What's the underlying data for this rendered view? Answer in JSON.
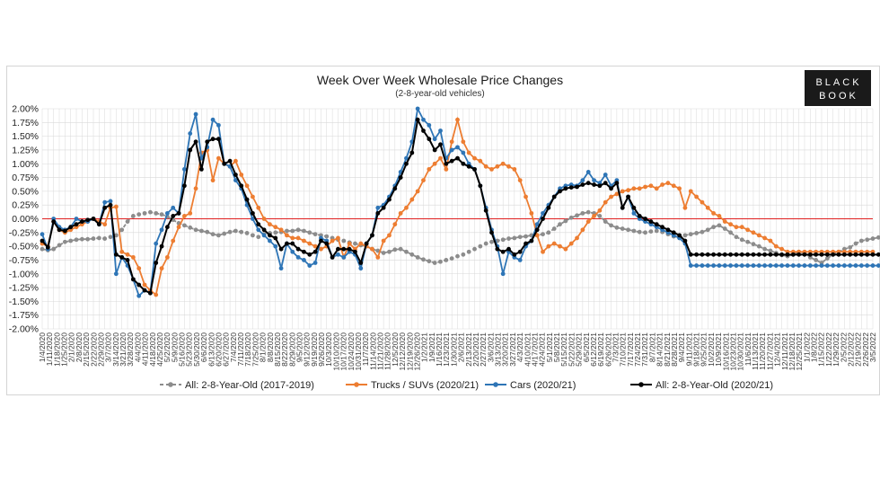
{
  "chart_data": {
    "type": "line",
    "title": "Week Over Week Wholesale Price Changes",
    "subtitle": "(2-8-year-old vehicles)",
    "ylim": [
      -2.0,
      2.0
    ],
    "yticks": [
      "2.00%",
      "1.75%",
      "1.50%",
      "1.25%",
      "1.00%",
      "0.75%",
      "0.50%",
      "0.25%",
      "0.00%",
      "-0.25%",
      "-0.50%",
      "-0.75%",
      "-1.00%",
      "-1.25%",
      "-1.50%",
      "-1.75%",
      "-2.00%"
    ],
    "x_tick_labels": [
      "1/4/2020",
      "1/11/2020",
      "1/18/2020",
      "1/25/2020",
      "2/1/2020",
      "2/8/2020",
      "2/15/2020",
      "2/22/2020",
      "2/29/2020",
      "3/7/2020",
      "3/14/2020",
      "3/21/2020",
      "3/28/2020",
      "4/4/2020",
      "4/11/2020",
      "4/18/2020",
      "4/25/2020",
      "5/2/2020",
      "5/9/2020",
      "5/16/2020",
      "5/23/2020",
      "5/30/2020",
      "6/6/2020",
      "6/13/2020",
      "6/20/2020",
      "6/27/2020",
      "7/4/2020",
      "7/11/2020",
      "7/18/2020",
      "7/25/2020",
      "8/1/2020",
      "8/8/2020",
      "8/15/2020",
      "8/22/2020",
      "8/29/2020",
      "9/5/2020",
      "9/12/2020",
      "9/19/2020",
      "9/26/2020",
      "10/3/2020",
      "10/10/2020",
      "10/17/2020",
      "10/24/2020",
      "10/31/2020",
      "11/7/2020",
      "11/14/2020",
      "11/21/2020",
      "11/28/2020",
      "12/5/2020",
      "12/12/2020",
      "12/19/2020",
      "12/26/2020",
      "1/2/2021",
      "1/9/2021",
      "1/16/2021",
      "1/23/2021",
      "1/30/2021",
      "2/6/2021",
      "2/13/2021",
      "2/20/2021",
      "2/27/2021",
      "3/6/2021",
      "3/13/2021",
      "3/20/2021",
      "3/27/2021",
      "4/3/2021",
      "4/10/2021",
      "4/17/2021",
      "4/24/2021",
      "5/1/2021",
      "5/8/2021",
      "5/15/2021",
      "5/22/2021",
      "5/29/2021",
      "6/5/2021",
      "6/12/2021",
      "6/19/2021",
      "6/26/2021",
      "7/3/2021",
      "7/10/2021",
      "7/17/2021",
      "7/24/2021",
      "7/31/2021",
      "8/7/2021",
      "8/14/2021",
      "8/21/2021",
      "8/28/2021",
      "9/4/2021",
      "9/11/2021",
      "9/18/2021",
      "9/25/2021",
      "10/2/2021",
      "10/9/2021",
      "10/16/2021",
      "10/23/2021",
      "10/30/2021",
      "11/6/2021",
      "11/13/2021",
      "11/20/2021",
      "11/27/2021",
      "12/4/2021",
      "12/11/2021",
      "12/18/2021",
      "12/25/2021",
      "1/1/2022",
      "1/8/2022",
      "1/15/2022",
      "1/22/2022",
      "1/29/2022",
      "2/5/2022",
      "2/12/2022",
      "2/19/2022",
      "2/26/2022",
      "3/5/2022"
    ],
    "label_every": 1,
    "x_label_index_step": 2,
    "n_points": 147,
    "series": [
      {
        "name": "All: 2-8-Year-Old (2017-2019)",
        "color": "#8c8c8c",
        "dashed": true,
        "values": [
          -0.55,
          -0.57,
          -0.55,
          -0.48,
          -0.42,
          -0.4,
          -0.38,
          -0.37,
          -0.37,
          -0.36,
          -0.35,
          -0.36,
          -0.33,
          -0.3,
          -0.2,
          -0.05,
          0.05,
          0.08,
          0.1,
          0.12,
          0.1,
          0.08,
          0.04,
          -0.02,
          -0.08,
          -0.12,
          -0.16,
          -0.2,
          -0.22,
          -0.24,
          -0.28,
          -0.3,
          -0.27,
          -0.24,
          -0.22,
          -0.24,
          -0.26,
          -0.3,
          -0.33,
          -0.28,
          -0.26,
          -0.25,
          -0.24,
          -0.22,
          -0.22,
          -0.2,
          -0.22,
          -0.25,
          -0.28,
          -0.3,
          -0.32,
          -0.35,
          -0.38,
          -0.4,
          -0.43,
          -0.45,
          -0.48,
          -0.5,
          -0.55,
          -0.58,
          -0.62,
          -0.6,
          -0.56,
          -0.55,
          -0.6,
          -0.65,
          -0.7,
          -0.74,
          -0.77,
          -0.8,
          -0.78,
          -0.75,
          -0.72,
          -0.68,
          -0.65,
          -0.6,
          -0.55,
          -0.5,
          -0.45,
          -0.42,
          -0.4,
          -0.38,
          -0.36,
          -0.35,
          -0.33,
          -0.32,
          -0.3,
          -0.3,
          -0.28,
          -0.25,
          -0.18,
          -0.1,
          -0.04,
          0.02,
          0.06,
          0.1,
          0.12,
          0.1,
          0.05,
          -0.05,
          -0.12,
          -0.16,
          -0.18,
          -0.2,
          -0.22,
          -0.24,
          -0.25,
          -0.23,
          -0.22,
          -0.24,
          -0.28,
          -0.32,
          -0.34,
          -0.3,
          -0.28,
          -0.26,
          -0.24,
          -0.2,
          -0.15,
          -0.12,
          -0.18,
          -0.25,
          -0.33,
          -0.38,
          -0.42,
          -0.46,
          -0.5,
          -0.55,
          -0.58,
          -0.62,
          -0.66,
          -0.68,
          -0.65,
          -0.6,
          -0.62,
          -0.7,
          -0.75,
          -0.8,
          -0.72,
          -0.65,
          -0.6,
          -0.55,
          -0.52,
          -0.45,
          -0.4,
          -0.38,
          -0.36,
          -0.34,
          -0.35,
          -0.33,
          -0.35
        ]
      },
      {
        "name": "Trucks / SUVs (2020/21)",
        "color": "#ed7d31",
        "dashed": false,
        "values": [
          -0.45,
          -0.5,
          -0.05,
          -0.2,
          -0.25,
          -0.2,
          -0.15,
          -0.1,
          -0.05,
          0.0,
          -0.05,
          -0.1,
          0.2,
          0.22,
          -0.6,
          -0.65,
          -0.7,
          -0.9,
          -1.2,
          -1.3,
          -1.38,
          -0.9,
          -0.7,
          -0.4,
          -0.15,
          0.05,
          0.1,
          0.55,
          1.2,
          1.25,
          0.7,
          1.1,
          1.0,
          0.95,
          1.05,
          0.8,
          0.6,
          0.4,
          0.2,
          0.0,
          -0.1,
          -0.15,
          -0.2,
          -0.3,
          -0.35,
          -0.35,
          -0.4,
          -0.45,
          -0.5,
          -0.55,
          -0.5,
          -0.4,
          -0.35,
          -0.7,
          -0.45,
          -0.55,
          -0.45,
          -0.5,
          -0.55,
          -0.7,
          -0.4,
          -0.3,
          -0.1,
          0.1,
          0.2,
          0.35,
          0.5,
          0.7,
          0.9,
          1.0,
          1.1,
          0.9,
          1.4,
          1.8,
          1.4,
          1.2,
          1.1,
          1.05,
          0.95,
          0.9,
          0.95,
          1.0,
          0.95,
          0.9,
          0.7,
          0.4,
          0.1,
          -0.3,
          -0.6,
          -0.5,
          -0.45,
          -0.5,
          -0.55,
          -0.45,
          -0.35,
          -0.2,
          -0.05,
          0.05,
          0.15,
          0.3,
          0.4,
          0.45,
          0.5,
          0.52,
          0.55,
          0.55,
          0.58,
          0.6,
          0.55,
          0.62,
          0.65,
          0.6,
          0.55,
          0.2,
          0.5,
          0.4,
          0.3,
          0.2,
          0.1,
          0.05,
          -0.05,
          -0.1,
          -0.15,
          -0.15,
          -0.2,
          -0.25,
          -0.3,
          -0.35,
          -0.4,
          -0.5,
          -0.55,
          -0.6,
          -0.6,
          -0.6,
          -0.6,
          -0.6,
          -0.6,
          -0.6,
          -0.6,
          -0.6,
          -0.6,
          -0.6,
          -0.6,
          -0.6,
          -0.6,
          -0.6,
          -0.6
        ]
      },
      {
        "name": "Cars (2020/21)",
        "color": "#2e75b6",
        "dashed": false,
        "values": [
          -0.28,
          -0.55,
          0.0,
          -0.15,
          -0.2,
          -0.15,
          0.0,
          -0.05,
          -0.05,
          0.0,
          -0.1,
          0.3,
          0.32,
          -1.0,
          -0.7,
          -0.85,
          -1.1,
          -1.4,
          -1.3,
          -1.35,
          -0.45,
          -0.2,
          0.1,
          0.2,
          0.1,
          0.9,
          1.55,
          1.9,
          1.1,
          1.3,
          1.8,
          1.7,
          1.0,
          0.95,
          0.7,
          0.55,
          0.25,
          0.0,
          -0.2,
          -0.3,
          -0.4,
          -0.5,
          -0.9,
          -0.45,
          -0.6,
          -0.7,
          -0.75,
          -0.85,
          -0.8,
          -0.35,
          -0.4,
          -0.7,
          -0.65,
          -0.7,
          -0.6,
          -0.65,
          -0.9,
          -0.45,
          -0.3,
          0.2,
          0.25,
          0.4,
          0.6,
          0.85,
          1.1,
          1.4,
          2.0,
          1.8,
          1.7,
          1.45,
          1.6,
          1.1,
          1.25,
          1.3,
          1.2,
          1.0,
          0.9,
          0.6,
          0.2,
          -0.2,
          -0.5,
          -1.0,
          -0.6,
          -0.7,
          -0.75,
          -0.5,
          -0.4,
          -0.1,
          0.1,
          0.25,
          0.4,
          0.55,
          0.6,
          0.62,
          0.6,
          0.7,
          0.85,
          0.7,
          0.65,
          0.8,
          0.6,
          0.7,
          0.2,
          0.4,
          0.1,
          0.0,
          -0.05,
          -0.1,
          -0.15,
          -0.2,
          -0.25,
          -0.3,
          -0.35,
          -0.45,
          -0.85,
          -0.85,
          -0.85,
          -0.85,
          -0.85,
          -0.85,
          -0.85,
          -0.85,
          -0.85,
          -0.85,
          -0.85,
          -0.85,
          -0.85,
          -0.85,
          -0.85,
          -0.85,
          -0.85,
          -0.85,
          -0.85,
          -0.85,
          -0.85,
          -0.85,
          -0.85,
          -0.85,
          -0.85,
          -0.85,
          -0.85,
          -0.85,
          -0.85,
          -0.85,
          -0.85,
          -0.85,
          -0.85,
          -0.85,
          -0.85
        ]
      },
      {
        "name": "All: 2-8-Year-Old (2020/21)",
        "color": "#000000",
        "dashed": false,
        "values": [
          -0.4,
          -0.52,
          -0.05,
          -0.2,
          -0.22,
          -0.15,
          -0.1,
          -0.05,
          -0.02,
          0.0,
          -0.1,
          0.2,
          0.25,
          -0.65,
          -0.7,
          -0.75,
          -1.1,
          -1.2,
          -1.3,
          -1.35,
          -0.8,
          -0.5,
          -0.15,
          0.05,
          0.1,
          0.6,
          1.25,
          1.4,
          0.9,
          1.4,
          1.45,
          1.45,
          1.0,
          1.05,
          0.8,
          0.6,
          0.35,
          0.1,
          -0.1,
          -0.2,
          -0.3,
          -0.35,
          -0.55,
          -0.45,
          -0.45,
          -0.55,
          -0.6,
          -0.65,
          -0.6,
          -0.4,
          -0.45,
          -0.7,
          -0.55,
          -0.55,
          -0.55,
          -0.6,
          -0.8,
          -0.45,
          -0.3,
          0.1,
          0.2,
          0.35,
          0.55,
          0.75,
          1.0,
          1.2,
          1.8,
          1.6,
          1.45,
          1.25,
          1.35,
          1.0,
          1.05,
          1.1,
          1.0,
          0.95,
          0.9,
          0.6,
          0.15,
          -0.25,
          -0.55,
          -0.6,
          -0.55,
          -0.65,
          -0.6,
          -0.45,
          -0.4,
          -0.2,
          0.0,
          0.2,
          0.4,
          0.5,
          0.55,
          0.57,
          0.58,
          0.62,
          0.65,
          0.62,
          0.6,
          0.65,
          0.55,
          0.65,
          0.2,
          0.4,
          0.2,
          0.05,
          0.0,
          -0.05,
          -0.1,
          -0.15,
          -0.2,
          -0.25,
          -0.3,
          -0.4,
          -0.65,
          -0.65,
          -0.65,
          -0.65,
          -0.65,
          -0.65,
          -0.65,
          -0.65,
          -0.65,
          -0.65,
          -0.65,
          -0.65,
          -0.65,
          -0.65,
          -0.65,
          -0.65,
          -0.65,
          -0.65,
          -0.65,
          -0.65,
          -0.65,
          -0.65,
          -0.65,
          -0.65,
          -0.65,
          -0.65,
          -0.65,
          -0.65,
          -0.65,
          -0.65,
          -0.65,
          -0.65,
          -0.65,
          -0.65,
          -0.65
        ]
      }
    ],
    "legend_position": "bottom",
    "grid": true
  },
  "logo": {
    "line1": "BLACK",
    "line2": "BOOK"
  },
  "colors": {
    "zero_line": "#e02020",
    "grid": "#d9d9d9"
  }
}
